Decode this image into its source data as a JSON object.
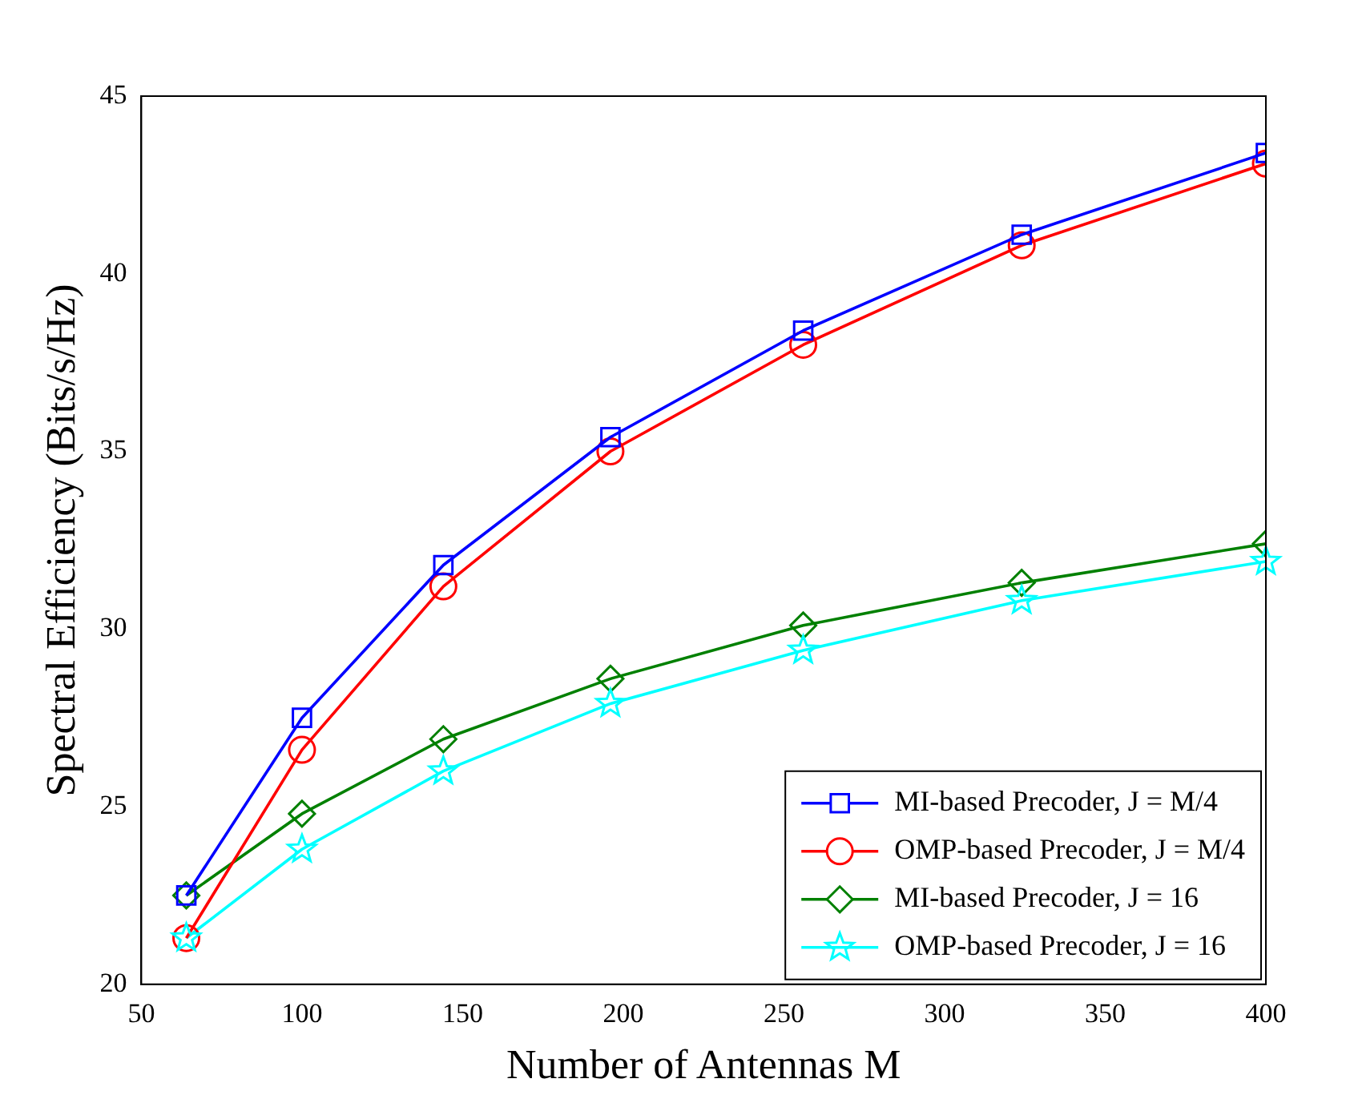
{
  "chart_data": {
    "type": "line",
    "xlabel": "Number of Antennas M",
    "ylabel": "Spectral Efficiency (Bits/s/Hz)",
    "x": [
      64,
      100,
      144,
      196,
      256,
      324,
      400
    ],
    "xlim": [
      50,
      400
    ],
    "xticks": [
      50,
      100,
      150,
      200,
      250,
      300,
      350,
      400
    ],
    "ylim": [
      20,
      45
    ],
    "yticks": [
      20,
      25,
      30,
      35,
      40,
      45
    ],
    "grid": false,
    "legend": "bottom right",
    "line_style": "solid",
    "series": [
      {
        "name": "MI-based Precoder, J = M/4",
        "color": "#0000ff",
        "marker": "square",
        "values": [
          22.5,
          27.5,
          31.8,
          35.4,
          38.4,
          41.1,
          43.4
        ]
      },
      {
        "name": "OMP-based Precoder, J = M/4",
        "color": "#ff0000",
        "marker": "circle",
        "values": [
          21.3,
          26.6,
          31.2,
          35.0,
          38.0,
          40.8,
          43.1
        ]
      },
      {
        "name": "MI-based Precoder, J = 16",
        "color": "#008000",
        "marker": "diamond",
        "values": [
          22.5,
          24.8,
          26.9,
          28.6,
          30.1,
          31.3,
          32.4
        ]
      },
      {
        "name": "OMP-based Precoder, J = 16",
        "color": "#00ffff",
        "marker": "star",
        "values": [
          21.3,
          23.8,
          26.0,
          27.9,
          29.4,
          30.8,
          31.9
        ]
      }
    ]
  }
}
